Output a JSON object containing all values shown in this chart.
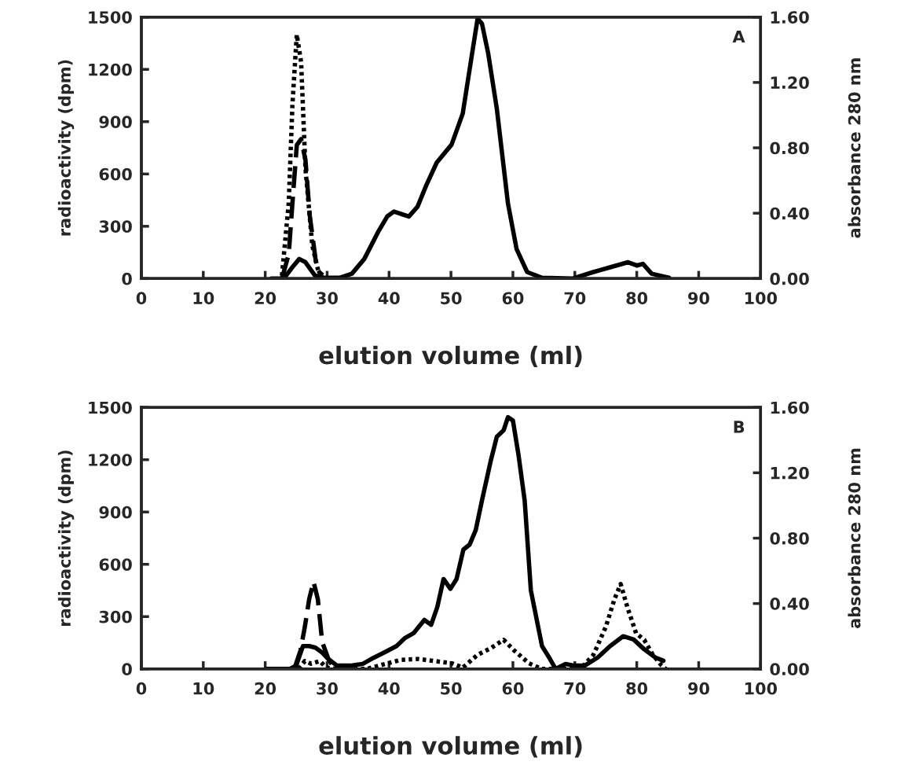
{
  "chart_data": [
    {
      "type": "line",
      "xlabel": "elution volume (ml)",
      "ylabel": "radioactivity (dpm)",
      "y2label": "absorbance 280 nm",
      "annotations": [
        "A"
      ],
      "xlim": [
        0,
        100
      ],
      "xticks": [
        0,
        10,
        20,
        30,
        40,
        50,
        60,
        70,
        80,
        90,
        100
      ],
      "ylim": [
        0,
        1500
      ],
      "yticks": [
        0,
        300,
        600,
        900,
        1200,
        1500
      ],
      "y2lim": [
        0,
        1.6
      ],
      "y2ticks": [
        {
          "value": 0,
          "label": "0.00"
        },
        {
          "value": 0.4,
          "label": "0.40"
        },
        {
          "value": 0.8,
          "label": "0.80"
        },
        {
          "value": 1.2,
          "label": "1.20"
        },
        {
          "value": 1.6,
          "label": "1.60"
        }
      ],
      "grid": false,
      "series": [
        {
          "color": "#000000",
          "axis": "y2",
          "line_style": "solid",
          "x": [
            21,
            23,
            24.4,
            25.5,
            26.5,
            28,
            29.3,
            32,
            34,
            36,
            38.3,
            39.7,
            40.8,
            43.2,
            44.6,
            46,
            47.7,
            50.1,
            51.9,
            53.3,
            54.3,
            55,
            56,
            57.4,
            59.2,
            60.6,
            62.3,
            64.7,
            69.6,
            73,
            75.8,
            78.6,
            80,
            81,
            82.4,
            85.2
          ],
          "values": [
            0,
            0,
            0.07,
            0.12,
            0.1,
            0.02,
            0.005,
            0.005,
            0.03,
            0.12,
            0.29,
            0.38,
            0.41,
            0.38,
            0.44,
            0.57,
            0.71,
            0.82,
            1.01,
            1.35,
            1.59,
            1.56,
            1.38,
            1.04,
            0.46,
            0.18,
            0.04,
            0.005,
            0,
            0.04,
            0.07,
            0.1,
            0.08,
            0.09,
            0.03,
            0.005
          ]
        },
        {
          "color": "#000000",
          "axis": "y",
          "line_style": "dashed",
          "x": [
            22.7,
            23.8,
            24.4,
            25.1,
            25.8,
            26.5,
            27.2,
            28.3,
            29.3
          ],
          "values": [
            0,
            140,
            434,
            765,
            800,
            680,
            360,
            66,
            0
          ]
        },
        {
          "color": "#000000",
          "axis": "y",
          "line_style": "dotted",
          "x": [
            22.7,
            23.8,
            24.4,
            25.1,
            25.8,
            26.5,
            27.6,
            28.6,
            30
          ],
          "values": [
            17,
            434,
            1000,
            1400,
            1240,
            630,
            190,
            40,
            0
          ]
        }
      ]
    },
    {
      "type": "line",
      "xlabel": "elution volume (ml)",
      "ylabel": "radioactivity (dpm)",
      "y2label": "absorbance 280 nm",
      "annotations": [
        "B"
      ],
      "xlim": [
        0,
        100
      ],
      "xticks": [
        0,
        10,
        20,
        30,
        40,
        50,
        60,
        70,
        80,
        90,
        100
      ],
      "ylim": [
        0,
        1500
      ],
      "yticks": [
        0,
        300,
        600,
        900,
        1200,
        1500
      ],
      "y2lim": [
        0,
        1.6
      ],
      "y2ticks": [
        {
          "value": 0,
          "label": "0.00"
        },
        {
          "value": 0.4,
          "label": "0.40"
        },
        {
          "value": 0.8,
          "label": "0.80"
        },
        {
          "value": 1.2,
          "label": "1.20"
        },
        {
          "value": 1.6,
          "label": "1.60"
        }
      ],
      "grid": false,
      "series": [
        {
          "color": "#000000",
          "axis": "y2",
          "line_style": "solid",
          "x": [
            20.2,
            24,
            25,
            26.1,
            27.1,
            28.1,
            29.2,
            30.2,
            31.6,
            33.7,
            35.7,
            37.1,
            39.2,
            41.2,
            42.6,
            44,
            45.7,
            46.8,
            47.8,
            48.8,
            49.9,
            50.9,
            52,
            53,
            54,
            55,
            56.4,
            57.4,
            58.5,
            59.2,
            60,
            60.9,
            61.9,
            62.9,
            64.7,
            66,
            66.9,
            68.5,
            69.9,
            71.6,
            73.7,
            75.7,
            77.8,
            79.5,
            81.2,
            83,
            84.3
          ],
          "values": [
            0,
            0,
            0.02,
            0.14,
            0.14,
            0.13,
            0.1,
            0.06,
            0.02,
            0.02,
            0.03,
            0.06,
            0.1,
            0.14,
            0.19,
            0.22,
            0.3,
            0.27,
            0.38,
            0.55,
            0.49,
            0.55,
            0.73,
            0.76,
            0.85,
            1.03,
            1.27,
            1.42,
            1.46,
            1.54,
            1.52,
            1.31,
            1.03,
            0.48,
            0.14,
            0.06,
            0,
            0.03,
            0.02,
            0.02,
            0.07,
            0.14,
            0.2,
            0.18,
            0.12,
            0.07,
            0.05
          ]
        },
        {
          "color": "#000000",
          "axis": "y",
          "line_style": "dashed",
          "x": [
            24.7,
            25.7,
            26.4,
            27.1,
            27.8,
            28.5,
            29.2,
            30.2,
            31.2
          ],
          "values": [
            0,
            106,
            241,
            400,
            500,
            400,
            155,
            57,
            0
          ]
        },
        {
          "color": "#000000",
          "axis": "y",
          "line_style": "dotted",
          "x": [
            25.4,
            26.4,
            27.4,
            28.8,
            29.9,
            31.6,
            36.4,
            39.2,
            41.9,
            44.7,
            47.4,
            50.2,
            51.9,
            54.3,
            56.4,
            58.5,
            60.2,
            62.6,
            64.7,
            70.9,
            73,
            75,
            76.4,
            77.4,
            78.5,
            79.9,
            81.2,
            82.6,
            84,
            84.7
          ],
          "values": [
            0,
            45,
            30,
            45,
            7,
            0,
            0,
            27,
            52,
            57,
            45,
            32,
            7,
            81,
            118,
            167,
            106,
            32,
            0,
            0,
            81,
            241,
            400,
            487,
            352,
            204,
            167,
            81,
            20,
            0
          ]
        }
      ]
    }
  ]
}
